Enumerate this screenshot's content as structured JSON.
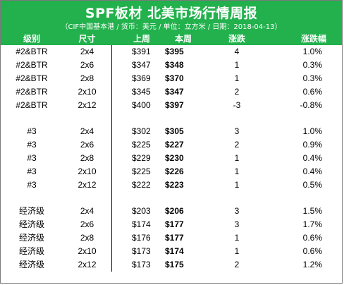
{
  "title": "SPF板材 北美市场行情周报",
  "subtitle": "（CIF中国基本港 / 货币：美元 / 单位：立方米 / 日期：2018-04-13）",
  "headers": {
    "grade": "级别",
    "size": "尺寸",
    "last_week": "上周",
    "this_week": "本周",
    "change": "涨跌",
    "change_pct": "涨跌幅"
  },
  "groups": [
    {
      "rows": [
        {
          "grade": "#2&BTR",
          "size": "2x4",
          "last": "$391",
          "current": "$395",
          "change": "4",
          "pct": "1.0%"
        },
        {
          "grade": "#2&BTR",
          "size": "2x6",
          "last": "$347",
          "current": "$348",
          "change": "1",
          "pct": "0.3%"
        },
        {
          "grade": "#2&BTR",
          "size": "2x8",
          "last": "$369",
          "current": "$370",
          "change": "1",
          "pct": "0.3%"
        },
        {
          "grade": "#2&BTR",
          "size": "2x10",
          "last": "$345",
          "current": "$347",
          "change": "2",
          "pct": "0.6%"
        },
        {
          "grade": "#2&BTR",
          "size": "2x12",
          "last": "$400",
          "current": "$397",
          "change": "-3",
          "pct": "-0.8%"
        }
      ]
    },
    {
      "rows": [
        {
          "grade": "#3",
          "size": "2x4",
          "last": "$302",
          "current": "$305",
          "change": "3",
          "pct": "1.0%"
        },
        {
          "grade": "#3",
          "size": "2x6",
          "last": "$225",
          "current": "$227",
          "change": "2",
          "pct": "0.9%"
        },
        {
          "grade": "#3",
          "size": "2x8",
          "last": "$229",
          "current": "$230",
          "change": "1",
          "pct": "0.4%"
        },
        {
          "grade": "#3",
          "size": "2x10",
          "last": "$225",
          "current": "$226",
          "change": "1",
          "pct": "0.4%"
        },
        {
          "grade": "#3",
          "size": "2x12",
          "last": "$222",
          "current": "$223",
          "change": "1",
          "pct": "0.5%"
        }
      ]
    },
    {
      "rows": [
        {
          "grade": "经济级",
          "size": "2x4",
          "last": "$203",
          "current": "$206",
          "change": "3",
          "pct": "1.5%"
        },
        {
          "grade": "经济级",
          "size": "2x6",
          "last": "$174",
          "current": "$177",
          "change": "3",
          "pct": "1.7%"
        },
        {
          "grade": "经济级",
          "size": "2x8",
          "last": "$176",
          "current": "$177",
          "change": "1",
          "pct": "0.6%"
        },
        {
          "grade": "经济级",
          "size": "2x10",
          "last": "$173",
          "current": "$174",
          "change": "1",
          "pct": "0.6%"
        },
        {
          "grade": "经济级",
          "size": "2x12",
          "last": "$173",
          "current": "$175",
          "change": "2",
          "pct": "1.2%"
        }
      ]
    }
  ],
  "colors": {
    "header_green": "#22b14c",
    "header_text": "#ffffff",
    "body_text": "#000000"
  }
}
